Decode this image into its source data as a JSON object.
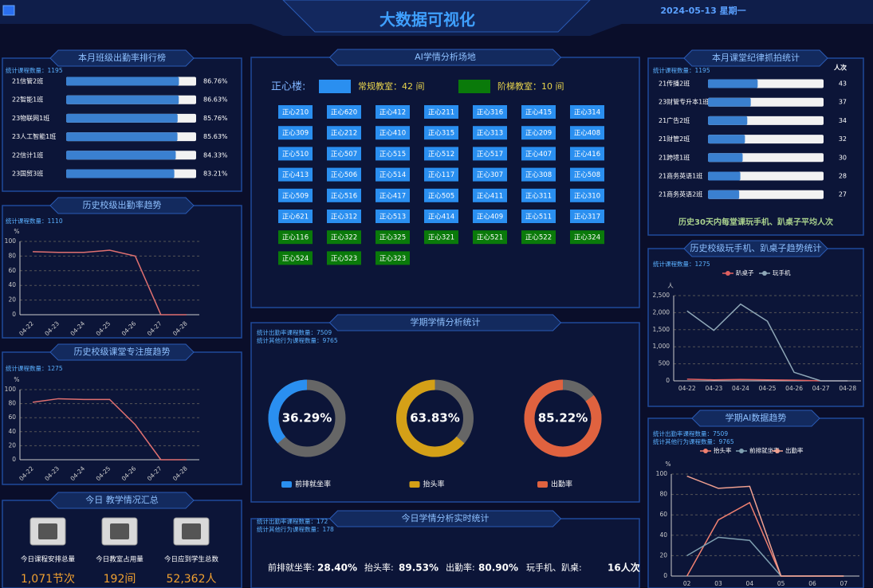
{
  "header": {
    "title": "大数据可视化",
    "date": "2024-05-13 星期一"
  },
  "summary": {
    "title": "今日 教学情况汇总",
    "items": [
      {
        "label": "今日课程安排总量",
        "value": "1,071节次"
      },
      {
        "label": "今日教室占用量",
        "value": "192间"
      },
      {
        "label": "今日应到学生总数",
        "value": "52,362人"
      }
    ]
  },
  "rooms": {
    "title": "AI学情分析场地",
    "building": "正心楼:",
    "legend": [
      {
        "label": "常规教室：42 间",
        "color": "#2a8ff0"
      },
      {
        "label": "阶梯教室：10 间",
        "color": "#0a7a0a"
      }
    ],
    "regular": [
      "正心210",
      "正心620",
      "正心412",
      "正心211",
      "正心316",
      "正心415",
      "正心314",
      "正心309",
      "正心212",
      "正心410",
      "正心315",
      "正心313",
      "正心209",
      "正心408",
      "正心510",
      "正心507",
      "正心515",
      "正心512",
      "正心517",
      "正心407",
      "正心416",
      "正心413",
      "正心506",
      "正心514",
      "正心117",
      "正心307",
      "正心308",
      "正心508",
      "正心509",
      "正心516",
      "正心417",
      "正心505",
      "正心411",
      "正心311",
      "正心310",
      "正心621",
      "正心312",
      "正心513",
      "正心414",
      "正心409",
      "正心511",
      "正心317"
    ],
    "lecture": [
      "正心116",
      "正心322",
      "正心325",
      "正心321",
      "正心521",
      "正心522",
      "正心324",
      "正心524",
      "正心523",
      "正心323"
    ]
  },
  "realtime": {
    "title": "今日学情分析实时统计",
    "notes": [
      "统计出勤率课程数量：172",
      "统计其他行为课程数量：178"
    ],
    "stats": [
      {
        "label": "前排就坐率:",
        "value": "28.40%"
      },
      {
        "label": "抬头率:",
        "value": "89.53%"
      },
      {
        "label": "出勤率:",
        "value": "80.90%"
      },
      {
        "label": "玩手机、趴桌:",
        "value": "16人次"
      }
    ]
  },
  "chart_data": [
    {
      "type": "bar",
      "horizontal": true,
      "title": "本月班级出勤率排行榜",
      "notes": [
        "统计课程数量：1195"
      ],
      "categories": [
        "21信管2班",
        "22智能1班",
        "23物联网1班",
        "23人工智能1班",
        "22信计1班",
        "23国贸3班"
      ],
      "values": [
        86.76,
        86.63,
        85.76,
        85.63,
        84.33,
        83.21
      ],
      "value_labels": [
        "86.76%",
        "86.63%",
        "85.76%",
        "85.63%",
        "84.33%",
        "83.21%"
      ],
      "xlim": [
        0,
        100
      ],
      "color": "#3a80d0"
    },
    {
      "type": "line",
      "title": "历史校级出勤率趋势",
      "notes": [
        "统计课程数量：1110"
      ],
      "y_label": "%",
      "categories": [
        "04-22",
        "04-23",
        "04-24",
        "04-25",
        "04-26",
        "04-27",
        "04-28"
      ],
      "series": [
        {
          "color": "#e07070",
          "values": [
            86,
            85,
            85,
            88,
            80,
            0,
            0
          ]
        }
      ],
      "ylim": [
        0,
        100
      ],
      "yticks": [
        0,
        20,
        40,
        60,
        80,
        100
      ],
      "grid": true
    },
    {
      "type": "line",
      "title": "历史校级课堂专注度趋势",
      "notes": [
        "统计课程数量：1275"
      ],
      "y_label": "%",
      "categories": [
        "04-22",
        "04-23",
        "04-24",
        "04-25",
        "04-26",
        "04-27",
        "04-28"
      ],
      "series": [
        {
          "color": "#e07070",
          "values": [
            82,
            87,
            86,
            86,
            50,
            0,
            0
          ]
        }
      ],
      "ylim": [
        0,
        100
      ],
      "yticks": [
        0,
        20,
        40,
        60,
        80,
        100
      ],
      "grid": true
    },
    {
      "type": "line",
      "title": "历史校级玩手机、趴桌子趋势统计",
      "notes": [
        "统计课程数量：1275"
      ],
      "y_label": "人",
      "categories": [
        "04-22",
        "04-23",
        "04-24",
        "04-25",
        "04-26",
        "04-27",
        "04-28"
      ],
      "series": [
        {
          "name": "趴桌子",
          "color": "#e06060",
          "values": [
            50,
            30,
            40,
            30,
            20,
            0,
            0
          ]
        },
        {
          "name": "玩手机",
          "color": "#8fa8b8",
          "values": [
            2050,
            1480,
            2250,
            1750,
            250,
            0,
            0
          ]
        }
      ],
      "ylim": [
        0,
        2500
      ],
      "yticks": [
        0,
        500,
        {
          "value": 1000,
          "label": "1,000"
        },
        {
          "value": 1500,
          "label": "1,500"
        },
        {
          "value": 2000,
          "label": "2,000"
        },
        {
          "value": 2500,
          "label": "2,500"
        }
      ],
      "grid": true
    },
    {
      "type": "donut",
      "title": "学期学情分析统计",
      "notes": [
        "统计出勤率课程数量：7509",
        "统计其他行为课程数量：9765"
      ],
      "categories": [
        "前排就坐率",
        "抬头率",
        "出勤率"
      ],
      "values": [
        36.29,
        63.83,
        85.22
      ],
      "value_labels": [
        "36.29%",
        "63.83%",
        "85.22%"
      ],
      "colors": [
        "#2a8ff0",
        "#d4a017",
        "#e0623f"
      ],
      "track_color": "#666666"
    },
    {
      "type": "bar",
      "horizontal": true,
      "title": "本月课堂纪律抓拍统计",
      "notes": [
        "统计课程数量：1195"
      ],
      "x_label": "人次",
      "categories": [
        "21传播2班",
        "23财管专升本1班",
        "21广告2班",
        "21财管2班",
        "21跨境1班",
        "21商务英语1班",
        "21商务英语2班"
      ],
      "values": [
        43,
        37,
        34,
        32,
        30,
        28,
        27
      ],
      "xlim": [
        0,
        100
      ],
      "color": "#3a80d0",
      "footnote": "历史30天内每堂课玩手机、趴桌子平均人次"
    },
    {
      "type": "line",
      "title": "学期AI数据趋势",
      "notes": [
        "统计出勤率课程数量：7509",
        "统计其他行为课程数量：9765"
      ],
      "y_label": "%",
      "categories": [
        "02",
        "03",
        "04",
        "05",
        "06",
        "07"
      ],
      "series": [
        {
          "name": "抬头率",
          "color": "#f08070",
          "values": [
            0,
            55,
            72,
            0,
            0,
            0
          ]
        },
        {
          "name": "前排就坐率",
          "color": "#7f9fb0",
          "values": [
            20,
            38,
            35,
            0,
            0,
            0
          ]
        },
        {
          "name": "出勤率",
          "color": "#f0a090",
          "values": [
            98,
            86,
            88,
            0,
            0,
            0
          ]
        }
      ],
      "ylim": [
        0,
        100
      ],
      "yticks": [
        0,
        20,
        40,
        60,
        80,
        100
      ],
      "grid": true
    }
  ]
}
